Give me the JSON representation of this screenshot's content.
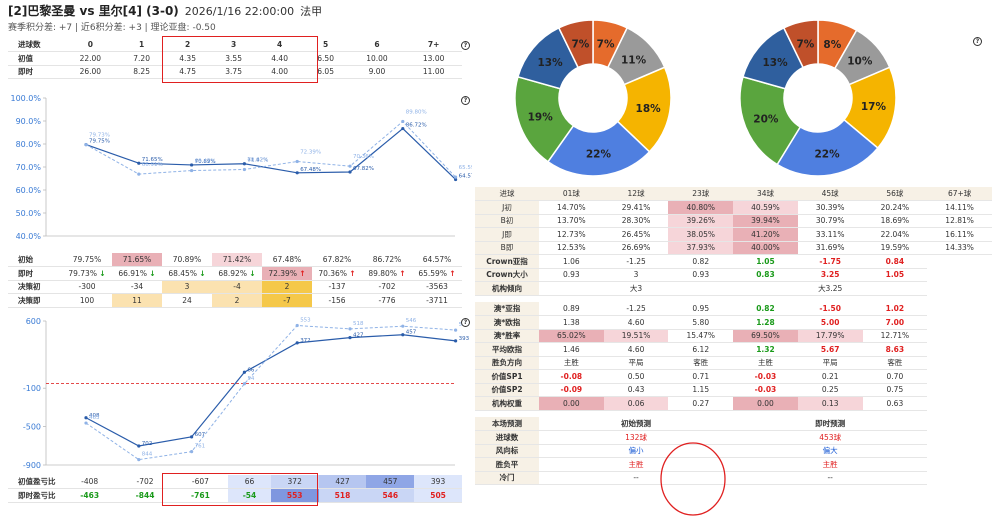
{
  "header": {
    "match": "[2]巴黎圣曼 vs 里尔[4] (3-0)",
    "datetime": "2026/1/16 22:00:00",
    "league": "法甲",
    "sub": "赛季积分差: +7 | 近6积分差: +3 | 理论亚盘: -0.50"
  },
  "goals_table": {
    "header_label": "进球数",
    "cols": [
      "0",
      "1",
      "2",
      "3",
      "4",
      "5",
      "6",
      "7+"
    ],
    "rows": [
      {
        "label": "初值",
        "values": [
          "22.00",
          "7.20",
          "4.35",
          "3.55",
          "4.40",
          "6.50",
          "10.00",
          "13.00"
        ]
      },
      {
        "label": "即时",
        "values": [
          "26.00",
          "8.25",
          "4.75",
          "3.75",
          "4.00",
          "6.05",
          "9.00",
          "11.00"
        ]
      }
    ]
  },
  "chart_data": [
    {
      "type": "line",
      "x": [
        "0",
        "1",
        "2",
        "3",
        "4",
        "5",
        "6",
        "7+"
      ],
      "ylim": [
        40,
        100
      ],
      "yticks": [
        "100.0%",
        "90.0%",
        "80.0%",
        "70.0%",
        "60.0%",
        "50.0%",
        "40.0%"
      ],
      "series": [
        {
          "values": [
            79.75,
            71.65,
            70.89,
            71.42,
            67.48,
            67.82,
            86.72,
            64.57
          ],
          "labels": [
            "79.75%",
            "71.65%",
            "70.89%",
            "71.42%",
            "67.48%",
            "67.82%",
            "86.72%",
            "64.57%"
          ]
        },
        {
          "values": [
            79.73,
            66.91,
            68.45,
            68.92,
            72.39,
            70.36,
            89.8,
            65.59
          ],
          "labels": [
            "79.73%",
            "66.91%",
            "68.45%",
            "68.92%",
            "72.39%",
            "70.36%",
            "89.80%",
            "65.59%"
          ]
        }
      ]
    },
    {
      "type": "line",
      "x": [
        "0",
        "1",
        "2",
        "3",
        "4",
        "5",
        "6",
        "7+"
      ],
      "ylim": [
        -900,
        600
      ],
      "yticks": [
        "600",
        "-100",
        "-500",
        "-900"
      ],
      "reference_line": -50,
      "series": [
        {
          "values": [
            -408,
            -702,
            -607,
            66,
            372,
            427,
            457,
            393
          ],
          "labels": [
            "408",
            "702",
            "607",
            "66",
            "372",
            "427",
            "457",
            "393"
          ]
        },
        {
          "values": [
            -463,
            -844,
            -761,
            -54,
            553,
            518,
            546,
            505
          ],
          "labels": [
            "463",
            "844",
            "761",
            "54",
            "553",
            "518",
            "546",
            "505"
          ]
        }
      ]
    },
    {
      "type": "pie",
      "title": "",
      "values": [
        7,
        11,
        18,
        22,
        19,
        13,
        7
      ],
      "labels": [
        "7%",
        "11%",
        "18%",
        "22%",
        "19%",
        "13%",
        "7%"
      ],
      "colors": [
        "#e56b2c",
        "#9a9a9a",
        "#f5b400",
        "#4f7fe0",
        "#5aa53e",
        "#2f5f9e",
        "#c0502a"
      ]
    },
    {
      "type": "pie",
      "title": "",
      "values": [
        8,
        10,
        17,
        22,
        20,
        13,
        7
      ],
      "labels": [
        "8%",
        "10%",
        "17%",
        "22%",
        "20%",
        "13%",
        "7%"
      ],
      "colors": [
        "#e56b2c",
        "#9a9a9a",
        "#f5b400",
        "#4f7fe0",
        "#5aa53e",
        "#2f5f9e",
        "#c0502a"
      ]
    }
  ],
  "pct_table": {
    "rows": [
      {
        "label": "初始",
        "cells": [
          "79.75%",
          "71.65%",
          "70.89%",
          "71.42%",
          "67.48%",
          "67.82%",
          "86.72%",
          "64.57%"
        ]
      },
      {
        "label": "即时",
        "cells": [
          "79.73% ↓",
          "66.91% ↓",
          "68.45% ↓",
          "68.92% ↓",
          "72.39% ↑",
          "70.36% ↑",
          "89.80% ↑",
          "65.59% ↑"
        ]
      },
      {
        "label": "决策初",
        "cells": [
          "-300",
          "-34",
          "3",
          "-4",
          "2",
          "-137",
          "-702",
          "-3563"
        ]
      },
      {
        "label": "决策即",
        "cells": [
          "100",
          "11",
          "24",
          "2",
          "-7",
          "-156",
          "-776",
          "-3711"
        ]
      }
    ]
  },
  "profit_table": {
    "rows": [
      {
        "label": "初值盈亏比",
        "cells": [
          "-408",
          "-702",
          "-607",
          "66",
          "372",
          "427",
          "457",
          "393"
        ]
      },
      {
        "label": "即时盈亏比",
        "cells": [
          "-463",
          "-844",
          "-761",
          "-54",
          "553",
          "518",
          "546",
          "505"
        ]
      }
    ]
  },
  "right_table": {
    "header": [
      "进球",
      "01球",
      "12球",
      "23球",
      "34球",
      "45球",
      "56球",
      "67+球"
    ],
    "prob_rows": [
      {
        "label": "J初",
        "cells": [
          "14.70%",
          "29.41%",
          "40.80%",
          "40.59%",
          "30.39%",
          "20.24%",
          "14.11%"
        ]
      },
      {
        "label": "B初",
        "cells": [
          "13.70%",
          "28.30%",
          "39.26%",
          "39.94%",
          "30.79%",
          "18.69%",
          "12.81%"
        ]
      },
      {
        "label": "J即",
        "cells": [
          "12.73%",
          "26.45%",
          "38.05%",
          "41.20%",
          "33.11%",
          "22.04%",
          "16.11%"
        ]
      },
      {
        "label": "B即",
        "cells": [
          "12.53%",
          "26.69%",
          "37.93%",
          "40.00%",
          "31.69%",
          "19.59%",
          "14.33%"
        ]
      }
    ],
    "crown": [
      {
        "label": "Crown亚指",
        "cells": [
          "1.06",
          "-1.25",
          "0.82",
          "1.05",
          "-1.75",
          "0.84"
        ]
      },
      {
        "label": "Crown大小",
        "cells": [
          "0.93",
          "3",
          "0.93",
          "0.83",
          "3.25",
          "1.05"
        ]
      }
    ],
    "tendency_label": "机构倾向",
    "tendency_left": "大3",
    "tendency_right": "大3.25",
    "spec": [
      {
        "label": "澳*亚指",
        "cells": [
          "0.89",
          "-1.25",
          "0.95",
          "0.82",
          "-1.50",
          "1.02"
        ]
      },
      {
        "label": "澳*欧指",
        "cells": [
          "1.38",
          "4.60",
          "5.80",
          "1.28",
          "5.00",
          "7.00"
        ]
      },
      {
        "label": "澳*胜率",
        "cells": [
          "65.02%",
          "19.51%",
          "15.47%",
          "69.50%",
          "17.79%",
          "12.71%"
        ]
      },
      {
        "label": "平均欧指",
        "cells": [
          "1.46",
          "4.60",
          "6.12",
          "1.32",
          "5.67",
          "8.63"
        ]
      },
      {
        "label": "胜负方向",
        "cells": [
          "主胜",
          "平局",
          "客胜",
          "主胜",
          "平局",
          "客胜"
        ]
      },
      {
        "label": "价值SP1",
        "cells": [
          "-0.08",
          "0.50",
          "0.71",
          "-0.03",
          "0.21",
          "0.70"
        ]
      },
      {
        "label": "价值SP2",
        "cells": [
          "-0.09",
          "0.43",
          "1.15",
          "-0.03",
          "0.25",
          "0.75"
        ]
      },
      {
        "label": "机构权重",
        "cells": [
          "0.00",
          "0.06",
          "0.27",
          "0.00",
          "0.13",
          "0.63"
        ]
      }
    ],
    "predict_header": [
      "本场预测",
      "初始预测",
      "即时预测"
    ],
    "predict": [
      {
        "label": "进球数",
        "init": "132球",
        "now": "453球"
      },
      {
        "label": "风向标",
        "init": "偏小",
        "now": "偏大"
      },
      {
        "label": "胜负平",
        "init": "主胜",
        "now": "主胜"
      },
      {
        "label": "冷门",
        "init": "--",
        "now": "--"
      }
    ]
  }
}
